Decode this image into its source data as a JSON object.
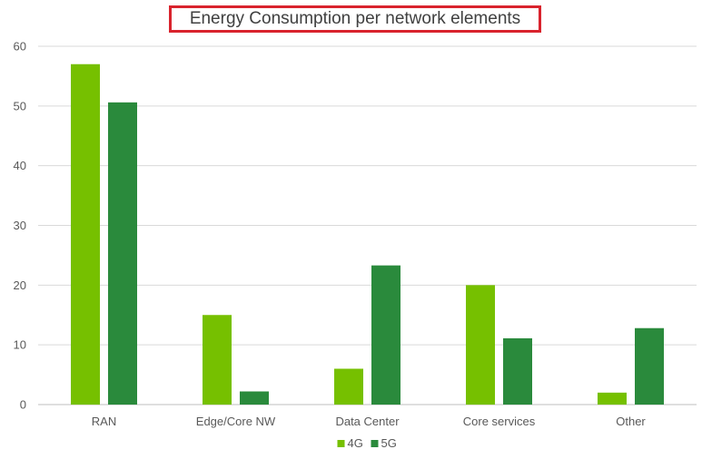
{
  "chart_data": {
    "type": "bar",
    "title": "Energy Consumption per network elements",
    "categories": [
      "RAN",
      "Edge/Core NW",
      "Data Center",
      "Core services",
      "Other"
    ],
    "series": [
      {
        "name": "4G",
        "color": "#76c000",
        "values": [
          57,
          15,
          6,
          20,
          2
        ]
      },
      {
        "name": "5G",
        "color": "#2a8a3c",
        "values": [
          50.6,
          2.2,
          23.3,
          11.1,
          12.8
        ]
      }
    ],
    "ylim": [
      0,
      60
    ],
    "yticks": [
      0,
      10,
      20,
      30,
      40,
      50,
      60
    ],
    "grid": true,
    "legend_position": "bottom",
    "title_border_color": "#d9232d"
  }
}
